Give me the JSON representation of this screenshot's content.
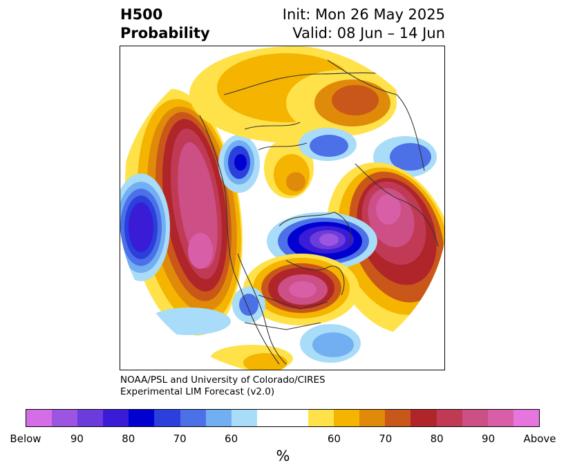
{
  "header": {
    "title_line1": "H500",
    "title_line2": "Probability",
    "init": "Init: Mon 26 May 2025",
    "valid": "Valid: 08 Jun – 14 Jun"
  },
  "credit": {
    "line1": "NOAA/PSL and University of Colorado/CIRES",
    "line2": "Experimental LIM Forecast (v2.0)"
  },
  "colorbar": {
    "colors": [
      "#d36ee7",
      "#9b55e0",
      "#6c3bdc",
      "#3a1bd6",
      "#0000d0",
      "#2a3fdc",
      "#4c70e8",
      "#72aef2",
      "#a9dcf8",
      "#ffffff",
      "#ffe14a",
      "#f4b400",
      "#e08a0a",
      "#c9571a",
      "#b0252a",
      "#c03a55",
      "#cc4f86",
      "#d85ea8",
      "#e676dd"
    ],
    "tick_labels": [
      "Below",
      "90",
      "80",
      "70",
      "60",
      "60",
      "70",
      "80",
      "90",
      "Above"
    ],
    "unit_label": "%"
  },
  "map": {
    "projection": "north-polar-stereographic",
    "anomaly_features": [
      {
        "region": "north-pacific",
        "sign": "above",
        "peak_probability": "Above"
      },
      {
        "region": "east-pacific",
        "sign": "below",
        "peak_probability": "80"
      },
      {
        "region": "hudson-bay",
        "sign": "below",
        "peak_probability": "Below"
      },
      {
        "region": "eastern-europe",
        "sign": "above",
        "peak_probability": "Above"
      },
      {
        "region": "central-asia",
        "sign": "above",
        "peak_probability": "Above"
      },
      {
        "region": "arctic",
        "sign": "below",
        "peak_probability": "70"
      }
    ]
  }
}
